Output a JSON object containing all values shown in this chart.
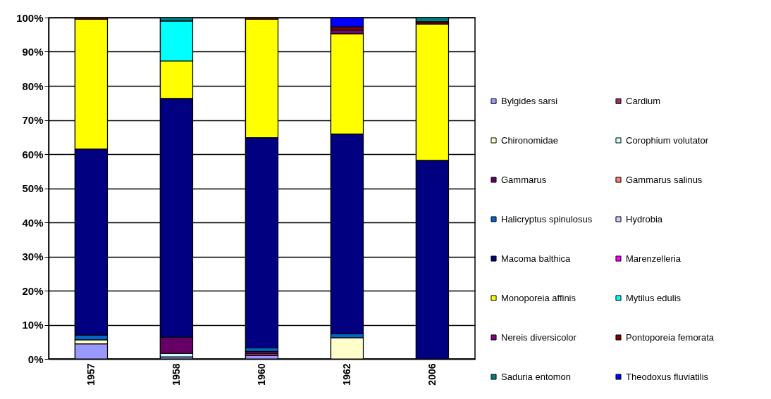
{
  "chart_data": {
    "type": "bar",
    "stacked": true,
    "categories": [
      "1957",
      "1958",
      "1960",
      "1962",
      "2006"
    ],
    "ylim": [
      0,
      100
    ],
    "yticks": [
      {
        "value": 0,
        "label": "0%"
      },
      {
        "value": 10,
        "label": "10%"
      },
      {
        "value": 20,
        "label": "20%"
      },
      {
        "value": 30,
        "label": "30%"
      },
      {
        "value": 40,
        "label": "40%"
      },
      {
        "value": 50,
        "label": "50%"
      },
      {
        "value": 60,
        "label": "60%"
      },
      {
        "value": 70,
        "label": "70%"
      },
      {
        "value": 80,
        "label": "80%"
      },
      {
        "value": 90,
        "label": "90%"
      },
      {
        "value": 100,
        "label": "100%"
      }
    ],
    "grid": true,
    "legend": "right",
    "series": [
      {
        "name": "Bylgides sarsi",
        "color": "#9999ff",
        "values": [
          4.4,
          0.6,
          1.0,
          0,
          0
        ]
      },
      {
        "name": "Cardium",
        "color": "#993366",
        "values": [
          0,
          0,
          0.6,
          0,
          0
        ]
      },
      {
        "name": "Chironomidae",
        "color": "#ffffcc",
        "values": [
          1.2,
          0,
          0,
          6.2,
          0
        ]
      },
      {
        "name": "Corophium volutator",
        "color": "#ccffff",
        "values": [
          0,
          1.0,
          0,
          0,
          0
        ]
      },
      {
        "name": "Gammarus",
        "color": "#660066",
        "values": [
          null,
          4.7,
          0.6,
          0,
          0
        ]
      },
      {
        "name": "Gammarus salinus",
        "color": "#ff8080",
        "values": [
          0,
          0,
          0,
          0,
          0
        ]
      },
      {
        "name": "Halicryptus spinulosus",
        "color": "#0066cc",
        "values": [
          1.4,
          0,
          1.0,
          1.2,
          0
        ]
      },
      {
        "name": "Hydrobia",
        "color": "#ccccff",
        "values": [
          0,
          0,
          0,
          0,
          0
        ]
      },
      {
        "name": "Macoma balthica",
        "color": "#000080",
        "values": [
          54.5,
          70.0,
          61.6,
          58.5,
          58.2
        ]
      },
      {
        "name": "Marenzelleria",
        "color": "#ff00ff",
        "values": [
          0,
          0,
          0,
          0,
          0
        ]
      },
      {
        "name": "Monoporeia affinis",
        "color": "#ffff00",
        "values": [
          38.0,
          11.0,
          34.7,
          29.4,
          39.9
        ]
      },
      {
        "name": "Mytilus edulis",
        "color": "#00ffff",
        "values": [
          0,
          11.7,
          0,
          0,
          0
        ]
      },
      {
        "name": "Nereis diversicolor",
        "color": "#800080",
        "values": [
          0,
          0,
          0,
          1.0,
          0
        ]
      },
      {
        "name": "Pontoporeia femorata",
        "color": "#800000",
        "values": [
          0.5,
          0,
          0.5,
          1.0,
          0.7
        ]
      },
      {
        "name": "Saduria entomon",
        "color": "#008080",
        "values": [
          0,
          1.0,
          0,
          0,
          1.2
        ]
      },
      {
        "name": "Theodoxus fluviatilis",
        "color": "#0000ff",
        "values": [
          0,
          0,
          0,
          2.7,
          0
        ]
      }
    ]
  }
}
